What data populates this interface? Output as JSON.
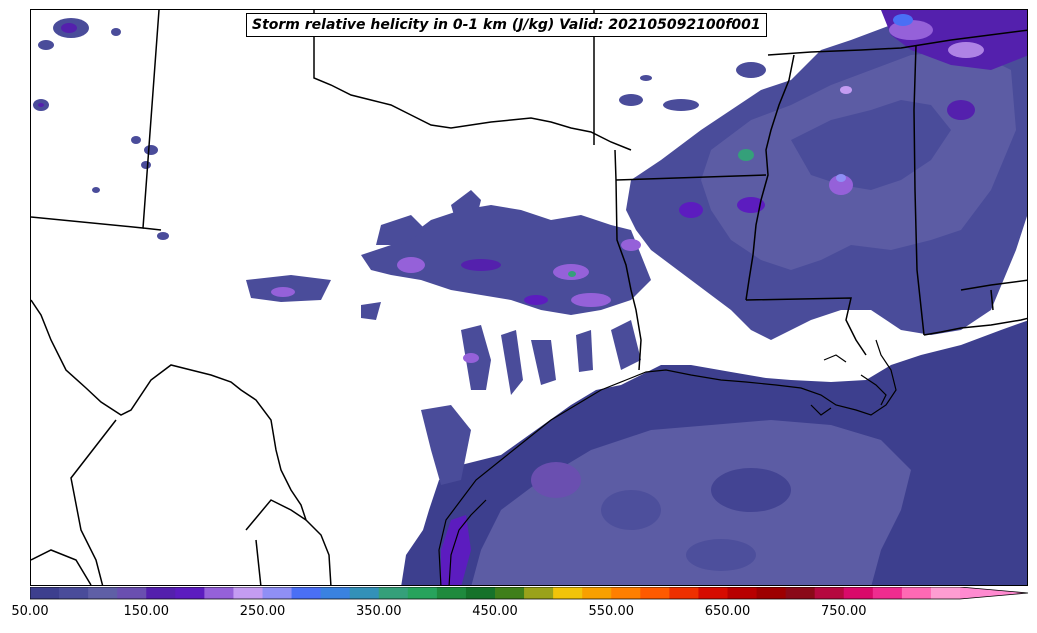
{
  "title": "Storm relative helicity in 0-1 km (J/kg) Valid: 202105092100f001",
  "colorbar": {
    "tick_labels": [
      "50.00",
      "150.00",
      "250.00",
      "350.00",
      "450.00",
      "550.00",
      "650.00",
      "750.00"
    ],
    "range": [
      50,
      850
    ],
    "interval": 25,
    "extend": "max",
    "extend_color": "#ff8ad0",
    "colors": [
      "#3d3f8e",
      "#4a4c9a",
      "#5f5fa6",
      "#6a4fb0",
      "#5420ad",
      "#5c1cbf",
      "#9561d9",
      "#c49cf2",
      "#8f8ff5",
      "#4a6ff5",
      "#3a82e0",
      "#3391b8",
      "#35a07a",
      "#27a35c",
      "#1f8a3d",
      "#16722a",
      "#3f7f1a",
      "#9aa21a",
      "#f2c40a",
      "#f8a000",
      "#ff7f00",
      "#ff5a00",
      "#ee3000",
      "#d60b00",
      "#b80000",
      "#9d0000",
      "#8a0a18",
      "#b5093f",
      "#d90a6a",
      "#ef2c8f",
      "#ff69b4",
      "#ff9dd2"
    ]
  },
  "legend_colors": {
    "coast": "#000000",
    "boundary": "#000000",
    "background": "#ffffff"
  }
}
